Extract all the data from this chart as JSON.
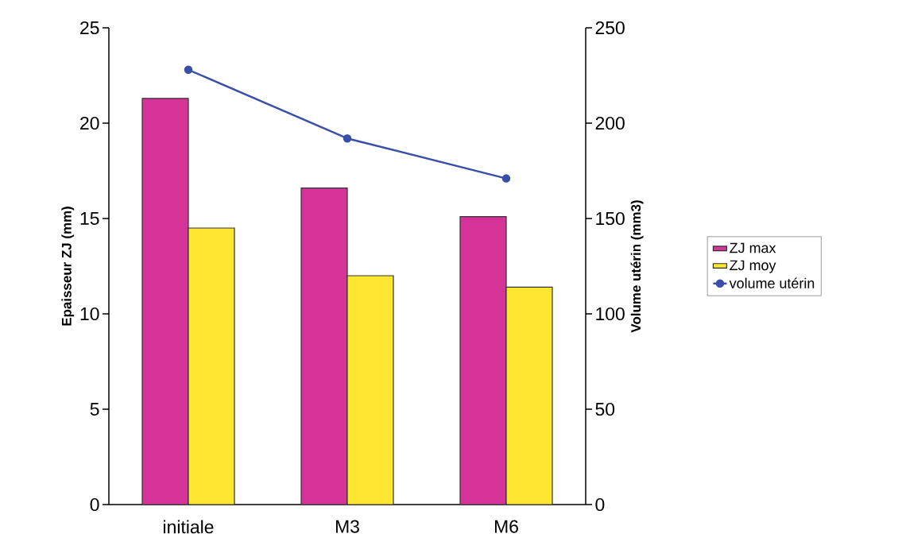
{
  "chart_data": {
    "type": "bar",
    "categories": [
      "initiale",
      "M3",
      "M6"
    ],
    "series": [
      {
        "name": "ZJ max",
        "color": "#d63399",
        "values": [
          21.3,
          16.6,
          15.1
        ]
      },
      {
        "name": "ZJ moy",
        "color": "#ffe630",
        "values": [
          14.5,
          12.0,
          11.4
        ]
      },
      {
        "name": "volume utérin",
        "type": "line",
        "axis": "y2",
        "color": "#3a4fa8",
        "values": [
          228,
          192,
          171
        ]
      }
    ],
    "ylabel": "Epaisseur ZJ (mm)",
    "y2label": "Volume utérin (mm3)",
    "ylim": [
      0,
      25
    ],
    "yticks": [
      0,
      5,
      10,
      15,
      20,
      25
    ],
    "y2lim": [
      0,
      250
    ],
    "y2ticks": [
      0,
      50,
      100,
      150,
      200,
      250
    ],
    "legend": "right",
    "marker": "circle"
  }
}
